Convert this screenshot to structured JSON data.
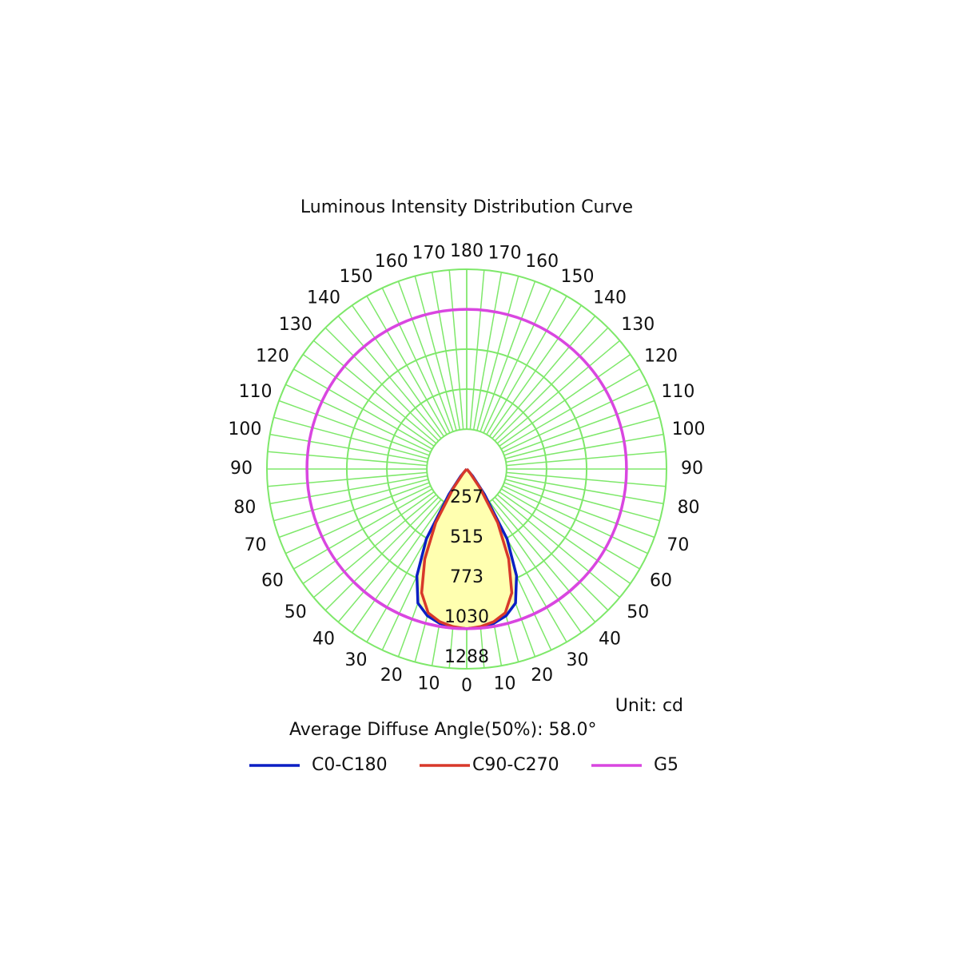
{
  "chart_data": {
    "type": "polar",
    "title": "Luminous Intensity Distribution Curve",
    "annotations": [
      "Unit: cd",
      "Average Diffuse Angle(50%): 58.0°"
    ],
    "x": [
      0,
      5,
      10,
      15,
      20,
      25,
      30,
      35,
      40,
      45
    ],
    "series": [
      {
        "name": "C0-C180",
        "color": "#0b1fc4",
        "values": [
          1030,
          1025,
          1010,
          980,
          920,
          760,
          520,
          200,
          60,
          0
        ]
      },
      {
        "name": "C90-C270",
        "color": "#d8382a",
        "values": [
          1030,
          1020,
          1000,
          960,
          850,
          640,
          400,
          150,
          30,
          0
        ]
      },
      {
        "name": "G5",
        "color": "#d946e0",
        "values": [
          1030,
          1030,
          1030,
          1030,
          1030,
          1030,
          1030,
          1030,
          1030,
          1030
        ]
      }
    ],
    "rlim": [
      0,
      1288
    ],
    "rticks": [
      257,
      515,
      773,
      1030,
      1288
    ],
    "angle_ticks": [
      0,
      10,
      20,
      30,
      40,
      50,
      60,
      70,
      80,
      90,
      100,
      110,
      120,
      130,
      140,
      150,
      160,
      170,
      180
    ],
    "grid_color": "#7ee86a",
    "fill_color": "#ffffb0"
  }
}
